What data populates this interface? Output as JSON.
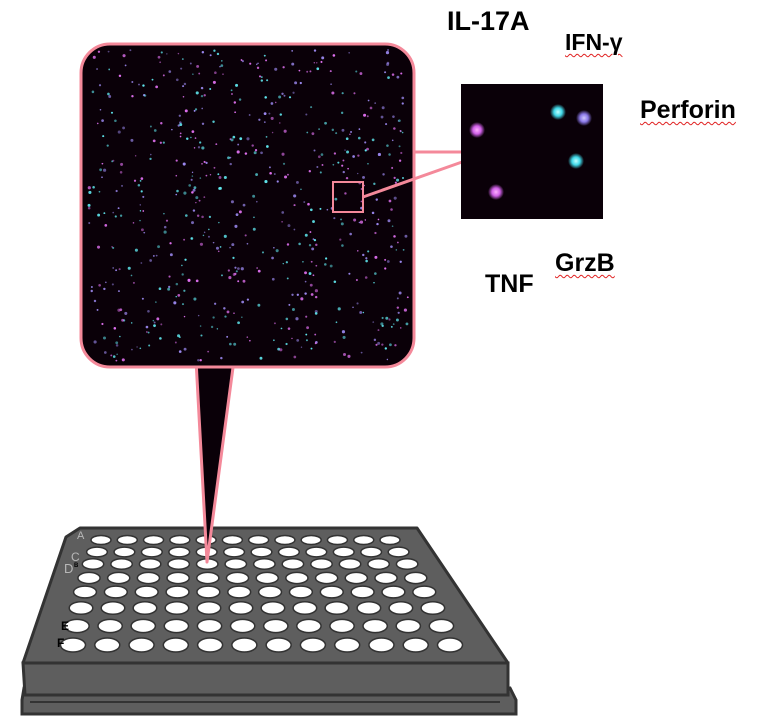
{
  "labels": {
    "il17a": "IL-17A",
    "ifng": "IFN-γ",
    "perforin": "Perforin",
    "tnf": "TNF",
    "grzb": "GrzB"
  },
  "plate": {
    "rows": 8,
    "columns": 12,
    "row_letters": [
      "A",
      "C",
      "D",
      "B",
      "E",
      "F"
    ]
  },
  "colors": {
    "callout_border": "#f4899a",
    "image_background": "#0a0008",
    "plate_body": "#5e5e5e",
    "plate_outline": "#333333",
    "well": "#ffffff",
    "dot_magenta": "#e070f0",
    "dot_cyan": "#60e8f0",
    "dot_lavender": "#9c88f0"
  }
}
